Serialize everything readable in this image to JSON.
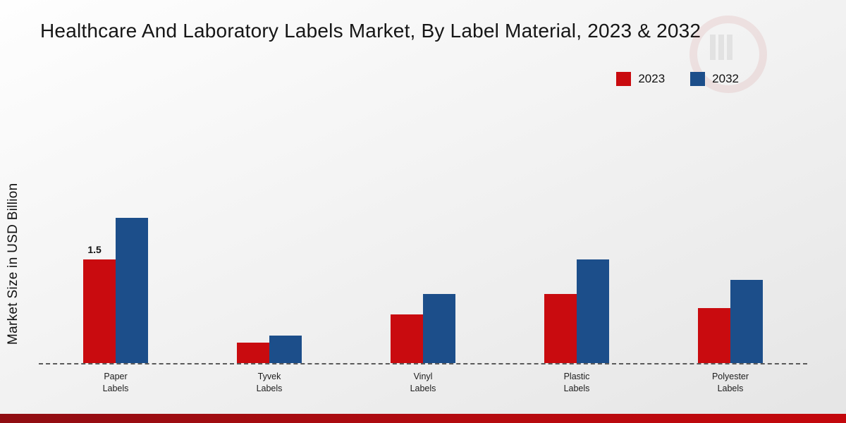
{
  "title": "Healthcare And Laboratory Labels Market, By Label Material, 2023 & 2032",
  "legend": {
    "items": [
      {
        "label": "2023",
        "color": "#c90b0f"
      },
      {
        "label": "2032",
        "color": "#1c4e8a"
      }
    ]
  },
  "footer_colors": {
    "left": "#8f0d12",
    "right": "#c3070c"
  },
  "chart_data": {
    "type": "bar",
    "title": "Healthcare And Laboratory Labels Market, By Label Material, 2023 & 2032",
    "xlabel": "",
    "ylabel": "Market Size in USD Billion",
    "ylim": [
      0,
      2.5
    ],
    "grid": false,
    "legend_position": "top-right",
    "categories": [
      "Paper\nLabels",
      "Tyvek\nLabels",
      "Vinyl\nLabels",
      "Plastic\nLabels",
      "Polyester\nLabels"
    ],
    "series": [
      {
        "name": "2023",
        "color": "#c90b0f",
        "values": [
          1.5,
          0.3,
          0.7,
          1.0,
          0.8
        ]
      },
      {
        "name": "2032",
        "color": "#1c4e8a",
        "values": [
          2.1,
          0.4,
          1.0,
          1.5,
          1.2
        ]
      }
    ],
    "annotations": [
      {
        "series": 0,
        "index": 0,
        "text": "1.5"
      }
    ]
  }
}
